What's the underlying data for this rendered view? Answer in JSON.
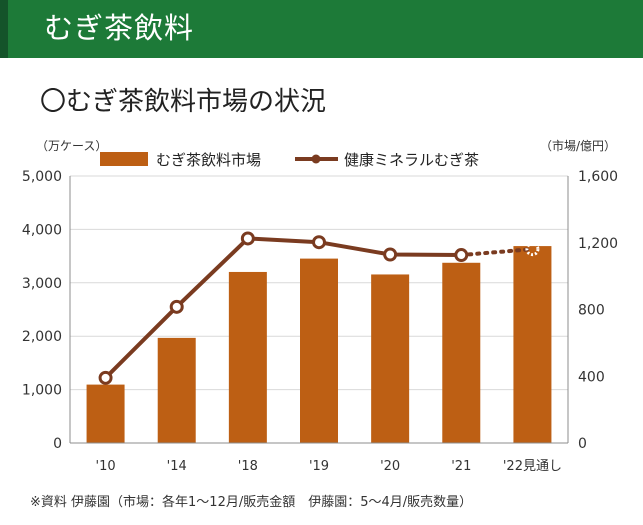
{
  "header": {
    "title": "むぎ茶飲料"
  },
  "section": {
    "title": "〇むぎ茶飲料市場の状況"
  },
  "footnote": "※資料 伊藤園（市場：各年1〜12月/販売金額　伊藤園：5〜4月/販売数量）",
  "colors": {
    "bar": "#bd5f14",
    "line": "#7a3b20",
    "header": "#1d7a38"
  },
  "chart_data": {
    "type": "bar",
    "categories": [
      "'10",
      "'14",
      "'18",
      "'19",
      "'20",
      "'21",
      "'22見通し"
    ],
    "series": [
      {
        "name": "むぎ茶飲料市場",
        "type": "bar",
        "axis": "right",
        "values": [
          350,
          630,
          1025,
          1105,
          1010,
          1080,
          1180
        ]
      },
      {
        "name": "健康ミネラルむぎ茶",
        "type": "line",
        "axis": "left",
        "values": [
          1220,
          2550,
          3830,
          3760,
          3530,
          3520,
          3630
        ],
        "dotted_last_segment": true
      }
    ],
    "y_left": {
      "label": "（万ケース）",
      "ticks": [
        "5,000",
        "4,000",
        "3,000",
        "2,000",
        "1,000",
        "0"
      ],
      "range": [
        0,
        5000
      ]
    },
    "y_right": {
      "label": "（市場/億円）",
      "ticks": [
        "1,600",
        "1,200",
        "800",
        "400",
        "0"
      ],
      "range": [
        0,
        1600
      ]
    },
    "legend_position": "top"
  }
}
